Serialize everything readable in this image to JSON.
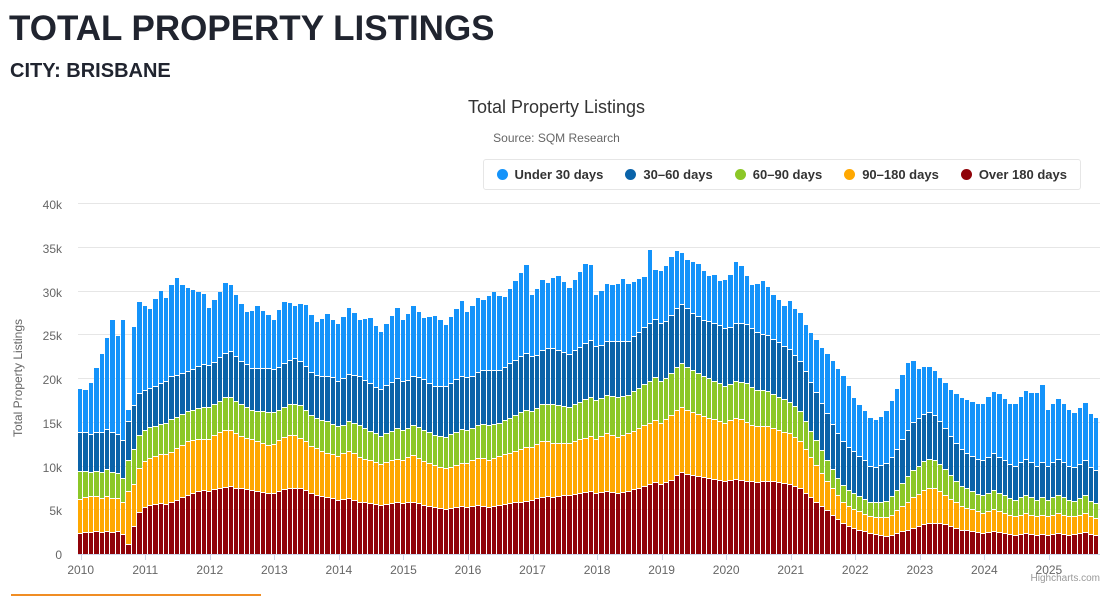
{
  "page": {
    "title": "TOTAL PROPERTY LISTINGS",
    "subtitle": "CITY: BRISBANE"
  },
  "chart": {
    "credits": "Highcharts.com"
  },
  "style_colors": {
    "heading_text": "#20242f",
    "chart_title_text": "#333333",
    "muted_text": "#666666",
    "grid_line": "#e6e6e6",
    "axis_line": "#ccd6eb",
    "credits_text": "#999999",
    "accent_underline": "#f08d24",
    "legend_border": "#e6e6e6"
  },
  "chart_data": {
    "type": "bar",
    "stacked": true,
    "title": "Total Property Listings",
    "subtitle": "Source: SQM Research",
    "ylabel": "Total Property Listings",
    "xlabel": "",
    "ylim": [
      0,
      40000
    ],
    "ytick_step": 5000,
    "ytick_labels": [
      "0",
      "5k",
      "10k",
      "15k",
      "20k",
      "25k",
      "30k",
      "35k",
      "40k"
    ],
    "grid": true,
    "legend_position": "top-right",
    "x_start": "2010-01",
    "x_end": "2025-10",
    "x_interval": "month",
    "n_months": 190,
    "xtick_labels": [
      "2010",
      "2011",
      "2012",
      "2013",
      "2014",
      "2015",
      "2016",
      "2017",
      "2018",
      "2019",
      "2020",
      "2021",
      "2022",
      "2023",
      "2024",
      "2025"
    ],
    "values_unit": "thousands of listings",
    "stack_order_bottom_to_top": [
      "Over 180 days",
      "90–180 days",
      "60–90 days",
      "30–60 days",
      "Under 30 days"
    ],
    "series": [
      {
        "name": "Under 30 days",
        "color": "#1493fa",
        "values": [
          4.9,
          4.9,
          5.9,
          7.4,
          9.0,
          10.4,
          12.8,
          11.2,
          13.7,
          1.3,
          9.0,
          10.4,
          9.5,
          9.0,
          10.0,
          10.5,
          9.5,
          10.5,
          11.0,
          10.0,
          9.5,
          9.0,
          8.5,
          8.0,
          6.5,
          7.0,
          7.5,
          8.0,
          7.5,
          7.0,
          6.5,
          6.0,
          6.5,
          7.0,
          6.5,
          6.0,
          5.5,
          6.5,
          7.0,
          6.5,
          6.0,
          6.5,
          7.0,
          6.5,
          6.0,
          6.5,
          7.0,
          6.5,
          6.5,
          7.0,
          7.5,
          7.0,
          6.5,
          7.0,
          7.5,
          7.0,
          6.5,
          7.0,
          7.5,
          8.0,
          7.0,
          7.5,
          8.0,
          7.5,
          7.0,
          7.5,
          8.0,
          7.5,
          7.0,
          7.5,
          8.0,
          8.5,
          7.5,
          8.0,
          8.5,
          8.0,
          8.5,
          9.0,
          8.5,
          8.0,
          8.5,
          9.0,
          9.5,
          10.0,
          7.0,
          7.5,
          8.0,
          7.5,
          8.0,
          8.5,
          8.0,
          7.5,
          8.0,
          8.5,
          9.0,
          8.5,
          5.8,
          6.2,
          6.5,
          6.3,
          6.5,
          7.0,
          6.5,
          6.2,
          6.0,
          5.8,
          8.3,
          5.6,
          6.0,
          6.3,
          6.7,
          6.5,
          5.8,
          5.5,
          5.8,
          6.0,
          5.5,
          5.2,
          5.5,
          5.0,
          5.5,
          6.0,
          7.0,
          6.5,
          5.5,
          5.0,
          5.5,
          6.0,
          5.5,
          5.0,
          4.8,
          4.5,
          5.5,
          5.2,
          5.5,
          5.3,
          5.6,
          6.0,
          6.3,
          6.8,
          7.2,
          7.4,
          7.5,
          7.0,
          6.0,
          5.8,
          5.6,
          5.4,
          5.3,
          5.5,
          5.9,
          6.4,
          6.9,
          7.4,
          7.6,
          7.0,
          5.5,
          5.4,
          5.2,
          5.0,
          4.9,
          5.1,
          5.3,
          5.6,
          5.8,
          6.0,
          6.2,
          6.3,
          6.5,
          6.8,
          7.0,
          7.2,
          7.0,
          6.8,
          7.0,
          7.4,
          7.7,
          7.9,
          8.3,
          8.8,
          6.4,
          6.6,
          6.8,
          6.6,
          6.4,
          6.2,
          6.4,
          6.6,
          6.1,
          6.0
        ]
      },
      {
        "name": "30–60 days",
        "color": "#0a63a9",
        "values": [
          4.5,
          4.4,
          4.3,
          4.4,
          4.5,
          4.6,
          4.5,
          4.4,
          4.3,
          4.5,
          5.0,
          4.8,
          4.6,
          4.5,
          4.6,
          4.7,
          4.8,
          4.9,
          4.8,
          4.7,
          4.6,
          4.7,
          4.8,
          4.9,
          4.8,
          4.9,
          5.0,
          5.1,
          5.2,
          5.1,
          5.0,
          4.9,
          4.8,
          4.9,
          5.0,
          5.1,
          5.0,
          4.9,
          5.0,
          5.1,
          5.2,
          5.1,
          5.0,
          4.9,
          5.0,
          5.1,
          5.2,
          5.3,
          5.2,
          5.3,
          5.4,
          5.5,
          5.6,
          5.5,
          5.4,
          5.3,
          5.4,
          5.5,
          5.6,
          5.7,
          5.6,
          5.5,
          5.6,
          5.7,
          5.8,
          5.7,
          5.6,
          5.7,
          5.8,
          5.9,
          6.0,
          6.1,
          6.0,
          5.9,
          6.0,
          6.1,
          6.2,
          6.1,
          6.0,
          6.1,
          6.2,
          6.3,
          6.4,
          6.5,
          6.2,
          6.1,
          6.2,
          6.3,
          6.4,
          6.3,
          6.2,
          6.1,
          6.2,
          6.3,
          6.4,
          6.5,
          6.2,
          6.1,
          6.2,
          6.3,
          6.4,
          6.3,
          6.2,
          6.3,
          6.4,
          6.5,
          6.6,
          6.7,
          6.6,
          6.5,
          6.6,
          6.7,
          6.8,
          6.7,
          6.6,
          6.5,
          6.4,
          6.5,
          6.6,
          6.7,
          6.6,
          6.5,
          6.6,
          6.7,
          6.8,
          6.7,
          6.6,
          6.5,
          6.4,
          6.3,
          6.2,
          6.1,
          6.0,
          5.9,
          5.8,
          5.7,
          5.6,
          5.5,
          5.4,
          5.3,
          5.2,
          5.1,
          5.0,
          4.9,
          4.8,
          4.6,
          4.4,
          4.2,
          4.1,
          4.2,
          4.3,
          4.5,
          4.7,
          5.0,
          5.3,
          5.5,
          5.5,
          5.4,
          5.3,
          5.1,
          4.9,
          4.7,
          4.5,
          4.3,
          4.2,
          4.1,
          4.0,
          4.0,
          4.0,
          4.1,
          4.2,
          4.1,
          4.0,
          3.9,
          3.9,
          4.0,
          4.1,
          4.0,
          3.9,
          4.0,
          3.9,
          4.0,
          4.1,
          4.0,
          3.9,
          3.8,
          3.9,
          4.0,
          3.8,
          3.8
        ]
      },
      {
        "name": "60–90 days",
        "color": "#8cc727",
        "values": [
          3.2,
          3.0,
          2.8,
          2.9,
          3.0,
          3.1,
          3.0,
          2.9,
          2.8,
          3.5,
          4.0,
          3.8,
          3.6,
          3.5,
          3.4,
          3.5,
          3.6,
          3.7,
          3.6,
          3.5,
          3.4,
          3.5,
          3.6,
          3.7,
          3.6,
          3.5,
          3.6,
          3.7,
          3.8,
          3.7,
          3.6,
          3.5,
          3.4,
          3.5,
          3.6,
          3.7,
          3.6,
          3.5,
          3.4,
          3.5,
          3.6,
          3.7,
          3.6,
          3.5,
          3.4,
          3.5,
          3.6,
          3.5,
          3.4,
          3.3,
          3.4,
          3.5,
          3.6,
          3.5,
          3.4,
          3.3,
          3.2,
          3.3,
          3.4,
          3.5,
          3.4,
          3.3,
          3.4,
          3.5,
          3.6,
          3.5,
          3.4,
          3.5,
          3.6,
          3.7,
          3.8,
          3.9,
          3.8,
          3.7,
          3.8,
          3.9,
          4.0,
          3.9,
          3.8,
          3.9,
          4.0,
          4.1,
          4.2,
          4.3,
          4.2,
          4.1,
          4.2,
          4.3,
          4.4,
          4.3,
          4.2,
          4.1,
          4.2,
          4.3,
          4.4,
          4.5,
          4.4,
          4.3,
          4.4,
          4.5,
          4.6,
          4.5,
          4.4,
          4.5,
          4.6,
          4.7,
          4.8,
          4.9,
          4.8,
          4.7,
          4.8,
          4.9,
          5.0,
          4.9,
          4.8,
          4.7,
          4.6,
          4.5,
          4.4,
          4.3,
          4.2,
          4.1,
          4.2,
          4.3,
          4.4,
          4.3,
          4.2,
          4.1,
          4.0,
          3.9,
          3.8,
          3.7,
          3.6,
          3.5,
          3.4,
          3.2,
          3.0,
          2.8,
          2.6,
          2.4,
          2.2,
          2.0,
          1.9,
          1.8,
          1.8,
          1.7,
          1.7,
          1.6,
          1.7,
          1.8,
          1.9,
          2.1,
          2.3,
          2.6,
          2.9,
          3.1,
          3.2,
          3.3,
          3.4,
          3.3,
          3.1,
          2.9,
          2.7,
          2.5,
          2.3,
          2.2,
          2.1,
          2.0,
          2.0,
          2.1,
          2.2,
          2.1,
          2.0,
          1.9,
          1.9,
          2.0,
          2.1,
          2.0,
          1.9,
          2.0,
          1.9,
          2.0,
          2.1,
          2.0,
          1.9,
          1.8,
          1.9,
          2.0,
          1.8,
          1.7
        ]
      },
      {
        "name": "90–180 days",
        "color": "#ffa801",
        "values": [
          3.9,
          4.0,
          4.1,
          4.0,
          3.9,
          4.0,
          3.9,
          3.8,
          3.6,
          6.0,
          4.8,
          5.0,
          5.2,
          5.4,
          5.5,
          5.6,
          5.7,
          5.8,
          5.9,
          6.0,
          6.1,
          6.0,
          5.9,
          5.8,
          6.0,
          6.2,
          6.4,
          6.5,
          6.4,
          6.2,
          6.0,
          5.9,
          5.8,
          5.7,
          5.6,
          5.5,
          5.6,
          5.8,
          6.0,
          6.1,
          6.0,
          5.8,
          5.6,
          5.4,
          5.3,
          5.2,
          5.1,
          5.0,
          5.0,
          5.2,
          5.4,
          5.3,
          5.1,
          5.0,
          4.9,
          4.8,
          4.7,
          4.8,
          4.9,
          5.0,
          5.0,
          5.2,
          5.3,
          5.2,
          5.0,
          4.9,
          4.8,
          4.7,
          4.6,
          4.7,
          4.8,
          4.9,
          5.0,
          5.2,
          5.4,
          5.5,
          5.4,
          5.5,
          5.6,
          5.7,
          5.8,
          5.9,
          6.0,
          6.1,
          6.0,
          6.2,
          6.4,
          6.3,
          6.2,
          6.1,
          6.0,
          5.9,
          6.0,
          6.1,
          6.2,
          6.3,
          6.2,
          6.4,
          6.6,
          6.5,
          6.4,
          6.5,
          6.6,
          6.7,
          6.8,
          6.9,
          7.0,
          7.1,
          7.0,
          7.2,
          7.4,
          7.5,
          7.4,
          7.3,
          7.2,
          7.1,
          7.0,
          6.9,
          6.8,
          6.7,
          6.6,
          6.8,
          7.0,
          6.9,
          6.7,
          6.5,
          6.4,
          6.3,
          6.2,
          6.1,
          6.0,
          5.9,
          5.8,
          5.6,
          5.4,
          5.0,
          4.6,
          4.2,
          3.8,
          3.4,
          3.0,
          2.7,
          2.5,
          2.3,
          2.2,
          2.1,
          2.0,
          1.9,
          1.9,
          2.0,
          2.1,
          2.3,
          2.6,
          2.9,
          3.2,
          3.5,
          3.7,
          3.9,
          4.0,
          3.9,
          3.7,
          3.4,
          3.1,
          2.9,
          2.7,
          2.6,
          2.5,
          2.4,
          2.3,
          2.4,
          2.5,
          2.4,
          2.3,
          2.2,
          2.1,
          2.2,
          2.3,
          2.2,
          2.1,
          2.2,
          2.1,
          2.2,
          2.3,
          2.2,
          2.1,
          2.0,
          2.1,
          2.2,
          2.0,
          1.9
        ]
      },
      {
        "name": "Over 180 days",
        "color": "#900309",
        "values": [
          2.4,
          2.5,
          2.5,
          2.6,
          2.5,
          2.6,
          2.5,
          2.6,
          2.3,
          1.2,
          3.2,
          4.8,
          5.4,
          5.6,
          5.7,
          5.8,
          5.7,
          5.9,
          6.2,
          6.5,
          6.8,
          7.0,
          7.2,
          7.3,
          7.2,
          7.4,
          7.5,
          7.7,
          7.8,
          7.6,
          7.5,
          7.4,
          7.3,
          7.2,
          7.1,
          7.0,
          7.0,
          7.2,
          7.4,
          7.5,
          7.6,
          7.5,
          7.3,
          7.0,
          6.8,
          6.6,
          6.5,
          6.4,
          6.2,
          6.3,
          6.4,
          6.2,
          6.0,
          5.9,
          5.8,
          5.7,
          5.6,
          5.7,
          5.8,
          5.9,
          5.8,
          5.9,
          6.0,
          5.8,
          5.6,
          5.5,
          5.4,
          5.3,
          5.2,
          5.3,
          5.4,
          5.5,
          5.4,
          5.5,
          5.6,
          5.5,
          5.4,
          5.5,
          5.6,
          5.7,
          5.8,
          5.9,
          6.0,
          6.1,
          6.2,
          6.4,
          6.5,
          6.6,
          6.5,
          6.6,
          6.7,
          6.8,
          6.9,
          7.0,
          7.1,
          7.2,
          7.0,
          7.1,
          7.2,
          7.1,
          7.0,
          7.1,
          7.2,
          7.4,
          7.6,
          7.8,
          8.0,
          8.2,
          8.0,
          8.2,
          8.5,
          9.0,
          9.4,
          9.2,
          9.0,
          8.9,
          8.8,
          8.7,
          8.6,
          8.5,
          8.4,
          8.5,
          8.6,
          8.5,
          8.4,
          8.3,
          8.2,
          8.3,
          8.4,
          8.3,
          8.2,
          8.1,
          8.0,
          7.8,
          7.5,
          7.0,
          6.5,
          6.0,
          5.5,
          5.0,
          4.5,
          4.0,
          3.5,
          3.2,
          3.0,
          2.8,
          2.6,
          2.4,
          2.3,
          2.2,
          2.1,
          2.2,
          2.4,
          2.6,
          2.8,
          3.0,
          3.2,
          3.4,
          3.5,
          3.6,
          3.5,
          3.4,
          3.2,
          3.0,
          2.8,
          2.7,
          2.6,
          2.5,
          2.4,
          2.5,
          2.6,
          2.5,
          2.4,
          2.3,
          2.2,
          2.3,
          2.4,
          2.3,
          2.2,
          2.3,
          2.2,
          2.3,
          2.4,
          2.3,
          2.2,
          2.3,
          2.4,
          2.5,
          2.3,
          2.2
        ]
      }
    ]
  }
}
